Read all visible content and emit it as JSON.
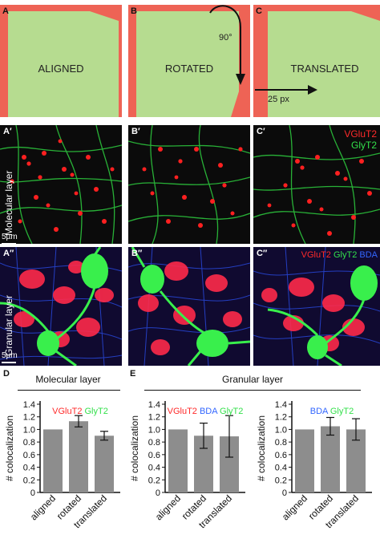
{
  "colors": {
    "frame_red": "#ee6355",
    "panel_green": "#b6dc90",
    "vglut2_red": "#ff2a2a",
    "glyt2_green": "#33e04b",
    "bda_blue": "#3266ff",
    "bar_gray": "#8d8d8d"
  },
  "panels": {
    "A": {
      "label": "A",
      "text": "ALIGNED"
    },
    "B": {
      "label": "B",
      "text": "ROTATED",
      "angle": "90°"
    },
    "C": {
      "label": "C",
      "text": "TRANSLATED",
      "shift": "25 px"
    }
  },
  "molecular_row": {
    "labels": [
      "A′",
      "B′",
      "C′"
    ],
    "side_label": "Molecular layer",
    "scale": "5µm",
    "legend_vglut2": "VGluT2",
    "legend_glyt2": "GlyT2"
  },
  "granular_row": {
    "labels": [
      "A′′",
      "B′′",
      "C′′"
    ],
    "side_label": "Granular layer",
    "scale": "5µm",
    "legend_vglut2": "VGluT2",
    "legend_glyt2": "GlyT2",
    "legend_bda": "BDA"
  },
  "section_D": {
    "label": "D",
    "title": "Molecular layer"
  },
  "section_E": {
    "label": "E",
    "title": "Granular layer"
  },
  "chart_data": [
    {
      "type": "bar",
      "panel": "D",
      "legend": [
        "VGluT2",
        "GlyT2"
      ],
      "categories": [
        "aligned",
        "rotated",
        "translated"
      ],
      "values": [
        1.0,
        1.13,
        0.9
      ],
      "errors": [
        0,
        0.09,
        0.07
      ],
      "ylabel": "# colocalization",
      "ylim": [
        0,
        1.4
      ],
      "yticks": [
        "0",
        "0.2",
        "0.4",
        "0.6",
        "0.8",
        "1.0",
        "1.2",
        "1.4"
      ]
    },
    {
      "type": "bar",
      "panel": "E-left",
      "legend": [
        "VGluT2",
        "BDA",
        "GlyT2"
      ],
      "categories": [
        "aligned",
        "rotated",
        "translated"
      ],
      "values": [
        1.0,
        0.9,
        0.89
      ],
      "errors": [
        0,
        0.2,
        0.33
      ],
      "ylabel": "# colocalization",
      "ylim": [
        0,
        1.4
      ],
      "yticks": [
        "0",
        "0.2",
        "0.4",
        "0.6",
        "0.8",
        "1.0",
        "1.2",
        "1.4"
      ]
    },
    {
      "type": "bar",
      "panel": "E-right",
      "legend": [
        "BDA",
        "GlyT2"
      ],
      "categories": [
        "aligned",
        "rotated",
        "translated"
      ],
      "values": [
        1.0,
        1.05,
        1.0
      ],
      "errors": [
        0,
        0.14,
        0.17
      ],
      "ylabel": "# colocalization",
      "ylim": [
        0,
        1.4
      ],
      "yticks": [
        "0",
        "0.2",
        "0.4",
        "0.6",
        "0.8",
        "1.0",
        "1.2",
        "1.4"
      ]
    }
  ]
}
